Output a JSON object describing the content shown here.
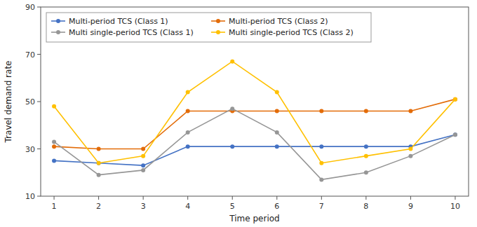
{
  "chart_data": {
    "type": "line",
    "xlabel": "Time period",
    "ylabel": "Travel demand rate",
    "x": [
      1,
      2,
      3,
      4,
      5,
      6,
      7,
      8,
      9,
      10
    ],
    "xlim": [
      0.7,
      10.3
    ],
    "xticks": [
      1,
      2,
      3,
      4,
      5,
      6,
      7,
      8,
      9,
      10
    ],
    "ylim": [
      10,
      90
    ],
    "yticks": [
      10,
      30,
      50,
      70,
      90
    ],
    "grid": false,
    "legend": "upper left",
    "series": [
      {
        "name": "Multi-period TCS (Class 1)",
        "color": "#4472C4",
        "marker": "o",
        "values": [
          25,
          24,
          23,
          31,
          31,
          31,
          31,
          31,
          31,
          36
        ]
      },
      {
        "name": "Multi-period TCS (Class 2)",
        "color": "#E36C09",
        "marker": "o",
        "values": [
          31,
          30,
          30,
          46,
          46,
          46,
          46,
          46,
          46,
          51
        ]
      },
      {
        "name": "Multi single-period TCS (Class 1)",
        "color": "#969696",
        "marker": "o",
        "values": [
          33,
          19,
          21,
          37,
          47,
          37,
          17,
          20,
          27,
          36
        ]
      },
      {
        "name": "Multi single-period TCS (Class 2)",
        "color": "#FFC000",
        "marker": "o",
        "values": [
          48,
          24,
          27,
          54,
          67,
          54,
          24,
          27,
          30,
          51
        ]
      }
    ]
  }
}
